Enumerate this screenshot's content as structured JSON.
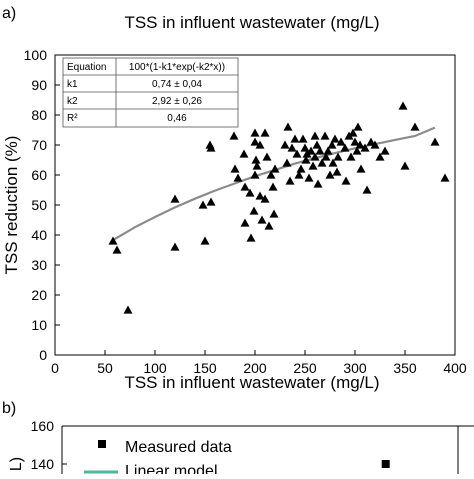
{
  "chart_data": [
    {
      "panel_label": "a)",
      "type": "scatter",
      "title": "TSS in influent wastewater (mg/L)",
      "xlabel": "TSS in influent wastewater (mg/L)",
      "ylabel": "TSS reduction (%)",
      "xlim": [
        0,
        400
      ],
      "ylim": [
        0,
        100
      ],
      "xticks": [
        "0",
        "50",
        "100",
        "150",
        "200",
        "250",
        "300",
        "350",
        "400"
      ],
      "yticks": [
        "0",
        "10",
        "20",
        "30",
        "40",
        "50",
        "60",
        "70",
        "80",
        "90",
        "100"
      ],
      "grid": false,
      "fit_table": {
        "rows": [
          [
            "Equation",
            "100*(1-k1*exp(-k2*x))"
          ],
          [
            "k1",
            "0,74 ± 0,04"
          ],
          [
            "k2",
            "2,92 ± 0,26"
          ],
          [
            "R²",
            "0,46"
          ]
        ]
      },
      "fit_curve": {
        "x": [
          58,
          80,
          100,
          120,
          140,
          160,
          180,
          200,
          220,
          240,
          260,
          280,
          300,
          320,
          340,
          360,
          380
        ],
        "y": [
          38.3,
          42.6,
          46.0,
          49.2,
          52.1,
          54.8,
          57.2,
          59.6,
          61.7,
          63.8,
          65.6,
          67.3,
          68.9,
          70.3,
          71.7,
          73.0,
          75.8
        ]
      },
      "points": [
        [
          58,
          38
        ],
        [
          62,
          35
        ],
        [
          73,
          15
        ],
        [
          120,
          52
        ],
        [
          120,
          36
        ],
        [
          148,
          50
        ],
        [
          150,
          38
        ],
        [
          155,
          70
        ],
        [
          156,
          51
        ],
        [
          156,
          69
        ],
        [
          179,
          73
        ],
        [
          180,
          62
        ],
        [
          183,
          59
        ],
        [
          189,
          67
        ],
        [
          190,
          44
        ],
        [
          190,
          56
        ],
        [
          195,
          54
        ],
        [
          196,
          39
        ],
        [
          199,
          48
        ],
        [
          200,
          74
        ],
        [
          200,
          71
        ],
        [
          200,
          60
        ],
        [
          201,
          65
        ],
        [
          202,
          63
        ],
        [
          205,
          53
        ],
        [
          205,
          70
        ],
        [
          207,
          45
        ],
        [
          210,
          74
        ],
        [
          210,
          52
        ],
        [
          212,
          66
        ],
        [
          214,
          43
        ],
        [
          216,
          60
        ],
        [
          218,
          56
        ],
        [
          219,
          47
        ],
        [
          220,
          62
        ],
        [
          230,
          70
        ],
        [
          232,
          64
        ],
        [
          233,
          76
        ],
        [
          235,
          58
        ],
        [
          237,
          69
        ],
        [
          240,
          72
        ],
        [
          242,
          67
        ],
        [
          244,
          60
        ],
        [
          246,
          62
        ],
        [
          248,
          72
        ],
        [
          250,
          69
        ],
        [
          251,
          65
        ],
        [
          252,
          67
        ],
        [
          254,
          59
        ],
        [
          256,
          68
        ],
        [
          258,
          63
        ],
        [
          260,
          73
        ],
        [
          260,
          66
        ],
        [
          262,
          70
        ],
        [
          263,
          57
        ],
        [
          265,
          68
        ],
        [
          267,
          64
        ],
        [
          270,
          73
        ],
        [
          271,
          66
        ],
        [
          273,
          68
        ],
        [
          275,
          60
        ],
        [
          277,
          70
        ],
        [
          278,
          64
        ],
        [
          280,
          72
        ],
        [
          282,
          61
        ],
        [
          283,
          66
        ],
        [
          286,
          71
        ],
        [
          290,
          69
        ],
        [
          291,
          58
        ],
        [
          294,
          73
        ],
        [
          296,
          66
        ],
        [
          298,
          74
        ],
        [
          300,
          71
        ],
        [
          302,
          68
        ],
        [
          303,
          76
        ],
        [
          305,
          70
        ],
        [
          306,
          62
        ],
        [
          310,
          69
        ],
        [
          312,
          55
        ],
        [
          316,
          71
        ],
        [
          320,
          70
        ],
        [
          325,
          66
        ],
        [
          330,
          68
        ],
        [
          348,
          83
        ],
        [
          350,
          63
        ],
        [
          360,
          76
        ],
        [
          380,
          71
        ],
        [
          390,
          59
        ]
      ]
    },
    {
      "panel_label": "b)",
      "type": "scatter",
      "ylabel": "L)",
      "ylim_partial": [
        140,
        160
      ],
      "yticks": [
        "160",
        "140"
      ],
      "legend": [
        "Measured data",
        "Linear model"
      ],
      "legend_position": "top-left",
      "points": [
        [
          327,
          140
        ]
      ]
    }
  ],
  "colors": {
    "marker": "#000000",
    "fit_line": "#8c8c8c",
    "linear_model": "#4fb89a",
    "table_border": "#555555"
  }
}
